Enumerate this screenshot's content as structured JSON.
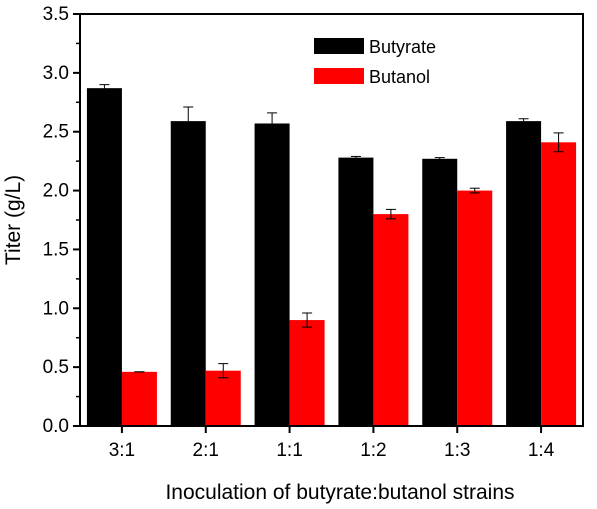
{
  "chart_data": {
    "type": "bar",
    "title": "",
    "xlabel": "Inoculation of butyrate:butanol strains",
    "ylabel": "Titer (g/L)",
    "categories": [
      "3:1",
      "2:1",
      "1:1",
      "1:2",
      "1:3",
      "1:4"
    ],
    "series": [
      {
        "name": "Butyrate",
        "color": "#000000",
        "values": [
          2.87,
          2.59,
          2.57,
          2.28,
          2.27,
          2.59
        ],
        "errors": [
          0.03,
          0.12,
          0.09,
          0.01,
          0.01,
          0.02
        ]
      },
      {
        "name": "Butanol",
        "color": "#ff0000",
        "values": [
          0.46,
          0.47,
          0.9,
          1.8,
          2.0,
          2.41
        ],
        "errors": [
          0.0,
          0.06,
          0.06,
          0.04,
          0.02,
          0.08
        ]
      }
    ],
    "ylim": [
      0.0,
      3.5
    ],
    "yticks": [
      "0.0",
      "0.5",
      "1.0",
      "1.5",
      "2.0",
      "2.5",
      "3.0",
      "3.5"
    ],
    "grid": false,
    "legend_position": "top-right"
  }
}
